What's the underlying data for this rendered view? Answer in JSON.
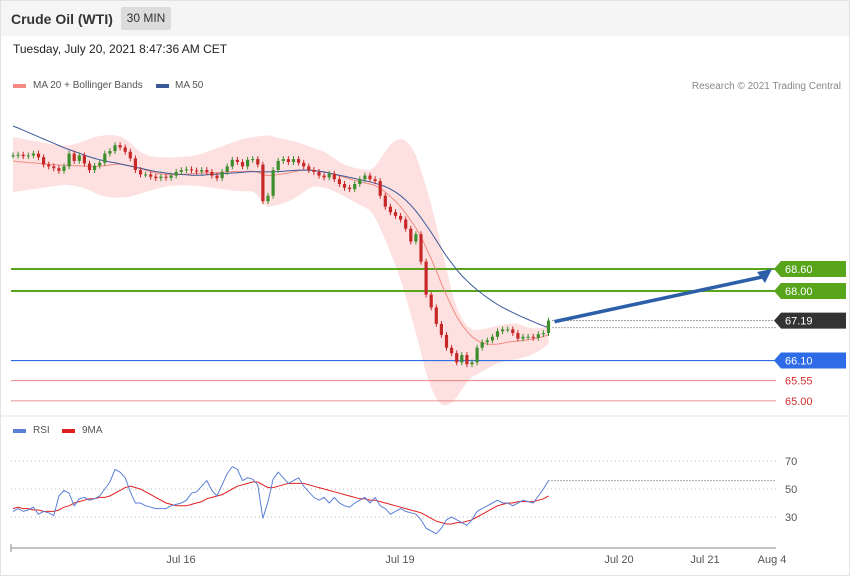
{
  "header": {
    "title": "Crude Oil (WTI)",
    "timeframe": "30 MIN"
  },
  "timestamp": "Tuesday, July 20, 2021 8:47:36 AM CET",
  "legend": {
    "ma20_label": "MA 20 + Bollinger Bands",
    "ma50_label": "MA 50",
    "credit": "Research © 2021 Trading Central"
  },
  "rsi_legend": {
    "rsi_label": "RSI",
    "ma9_label": "9MA"
  },
  "colors": {
    "ma20": "#f28b82",
    "ma50": "#3b5998",
    "bands": "#fddcdc",
    "up_candle": "#3e8e2e",
    "down_candle": "#c62828",
    "resistance": "#58a51c",
    "support": "#2e6be6",
    "support_minor": "#e57373",
    "current": "#333333",
    "arrow": "#2d5fa8",
    "rsi": "#5b7fd6",
    "rsi_ma": "#e02020"
  },
  "chart_data": [
    {
      "type": "line",
      "name": "price",
      "x_tick_labels": [
        "Jul 16",
        "Jul 19",
        "Jul 20",
        "Jul 21",
        "Aug 4"
      ],
      "y_range": [
        64.75,
        73.35
      ],
      "levels": [
        {
          "label": "68.60",
          "value": 68.6,
          "kind": "resistance"
        },
        {
          "label": "68.00",
          "value": 68.0,
          "kind": "resistance"
        },
        {
          "label": "67.19",
          "value": 67.19,
          "kind": "current"
        },
        {
          "label": "66.10",
          "value": 66.1,
          "kind": "support"
        },
        {
          "label": "65.55",
          "value": 65.55,
          "kind": "support_minor"
        },
        {
          "label": "65.00",
          "value": 65.0,
          "kind": "support_minor"
        }
      ],
      "forecast": {
        "from": 67.19,
        "to": 68.6
      },
      "close": [
        71.7,
        71.72,
        71.68,
        71.7,
        71.75,
        71.65,
        71.45,
        71.4,
        71.35,
        71.28,
        71.4,
        71.75,
        71.55,
        71.7,
        71.48,
        71.3,
        71.42,
        71.5,
        71.75,
        71.82,
        71.98,
        71.92,
        71.8,
        71.62,
        71.3,
        71.18,
        71.18,
        71.12,
        71.08,
        71.12,
        71.09,
        71.15,
        71.25,
        71.3,
        71.32,
        71.29,
        71.26,
        71.3,
        71.25,
        71.15,
        71.08,
        71.25,
        71.4,
        71.58,
        71.52,
        71.4,
        71.58,
        71.6,
        71.45,
        70.45,
        70.6,
        71.3,
        71.55,
        71.6,
        71.52,
        71.6,
        71.5,
        71.4,
        71.3,
        71.25,
        71.15,
        71.1,
        71.2,
        71.05,
        70.92,
        70.82,
        70.78,
        70.92,
        71.05,
        71.15,
        71.05,
        71.0,
        70.6,
        70.3,
        70.15,
        70.05,
        69.95,
        69.7,
        69.35,
        69.55,
        68.8,
        67.9,
        67.55,
        67.1,
        66.8,
        66.45,
        66.3,
        66.05,
        66.25,
        66.0,
        66.05,
        66.45,
        66.6,
        66.65,
        66.75,
        66.9,
        66.95,
        66.95,
        66.85,
        66.7,
        66.75,
        66.75,
        66.72,
        66.82,
        66.85,
        67.19
      ],
      "ma20": [
        71.55,
        71.53,
        71.52,
        71.5,
        71.5,
        71.48,
        71.47,
        71.46,
        71.45,
        71.44,
        71.43,
        71.43,
        71.42,
        71.42,
        71.41,
        71.4,
        71.4,
        71.41,
        71.42,
        71.44,
        71.46,
        71.46,
        71.44,
        71.42,
        71.38,
        71.34,
        71.3,
        71.26,
        71.22,
        71.2,
        71.18,
        71.17,
        71.17,
        71.18,
        71.19,
        71.2,
        71.21,
        71.22,
        71.23,
        71.23,
        71.23,
        71.24,
        71.25,
        71.26,
        71.26,
        71.26,
        71.27,
        71.27,
        71.24,
        71.18,
        71.15,
        71.16,
        71.18,
        71.2,
        71.22,
        71.25,
        71.28,
        71.3,
        71.3,
        71.29,
        71.27,
        71.25,
        71.22,
        71.18,
        71.14,
        71.1,
        71.06,
        71.02,
        70.98,
        70.95,
        70.92,
        70.88,
        70.8,
        70.7,
        70.58,
        70.45,
        70.3,
        70.12,
        69.92,
        69.72,
        69.48,
        69.18,
        68.88,
        68.55,
        68.2,
        67.88,
        67.58,
        67.3,
        67.08,
        66.9,
        66.75,
        66.65,
        66.58,
        66.55,
        66.54,
        66.55,
        66.57,
        66.6,
        66.62,
        66.63,
        66.65,
        66.67,
        66.69,
        66.72,
        66.76,
        66.8
      ],
      "ma50": [
        72.5,
        72.45,
        72.39,
        72.33,
        72.27,
        72.21,
        72.15,
        72.09,
        72.03,
        71.97,
        71.91,
        71.86,
        71.81,
        71.76,
        71.71,
        71.66,
        71.62,
        71.58,
        71.55,
        71.52,
        71.5,
        71.47,
        71.44,
        71.41,
        71.38,
        71.35,
        71.32,
        71.29,
        71.26,
        71.24,
        71.22,
        71.2,
        71.19,
        71.18,
        71.17,
        71.16,
        71.16,
        71.16,
        71.17,
        71.18,
        71.19,
        71.2,
        71.21,
        71.22,
        71.23,
        71.24,
        71.25,
        71.26,
        71.26,
        71.25,
        71.25,
        71.25,
        71.26,
        71.27,
        71.28,
        71.29,
        71.3,
        71.3,
        71.3,
        71.29,
        71.27,
        71.25,
        71.22,
        71.19,
        71.16,
        71.13,
        71.1,
        71.07,
        71.04,
        71.01,
        70.98,
        70.94,
        70.9,
        70.85,
        70.78,
        70.7,
        70.6,
        70.48,
        70.34,
        70.18,
        70.0,
        69.8,
        69.6,
        69.38,
        69.16,
        68.95,
        68.76,
        68.58,
        68.42,
        68.28,
        68.15,
        68.03,
        67.92,
        67.82,
        67.72,
        67.63,
        67.55,
        67.48,
        67.41,
        67.34,
        67.28,
        67.22,
        67.16,
        67.1,
        67.05,
        67.0
      ],
      "bb_upper": [
        72.2,
        72.18,
        72.15,
        72.12,
        72.1,
        72.08,
        72.05,
        72.02,
        72.0,
        71.98,
        71.97,
        71.98,
        72.0,
        72.05,
        72.1,
        72.15,
        72.2,
        72.23,
        72.25,
        72.26,
        72.25,
        72.22,
        72.15,
        72.05,
        71.9,
        71.8,
        71.72,
        71.68,
        71.66,
        71.65,
        71.64,
        71.64,
        71.65,
        71.66,
        71.67,
        71.68,
        71.7,
        71.75,
        71.8,
        71.85,
        71.9,
        71.95,
        72.0,
        72.05,
        72.1,
        72.15,
        72.18,
        72.2,
        72.22,
        72.24,
        72.25,
        72.22,
        72.18,
        72.15,
        72.12,
        72.1,
        72.05,
        72.0,
        71.95,
        71.9,
        71.85,
        71.8,
        71.72,
        71.62,
        71.52,
        71.45,
        71.4,
        71.36,
        71.33,
        71.31,
        71.3,
        71.4,
        71.6,
        71.8,
        72.0,
        72.1,
        72.15,
        72.1,
        71.95,
        71.7,
        71.3,
        70.85,
        70.35,
        69.8,
        69.2,
        68.6,
        68.0,
        67.55,
        67.25,
        67.05,
        66.95,
        66.93,
        66.95,
        66.98,
        67.02,
        67.05,
        67.08,
        67.1,
        67.12,
        67.1,
        67.05,
        67.0,
        66.98,
        66.98,
        67.0,
        67.1
      ],
      "bb_lower": [
        70.7,
        70.72,
        70.74,
        70.76,
        70.78,
        70.8,
        70.82,
        70.84,
        70.86,
        70.88,
        70.9,
        70.89,
        70.87,
        70.84,
        70.8,
        70.75,
        70.68,
        70.62,
        70.58,
        70.56,
        70.55,
        70.55,
        70.56,
        70.58,
        70.62,
        70.66,
        70.7,
        70.74,
        70.78,
        70.82,
        70.85,
        70.87,
        70.88,
        70.89,
        70.89,
        70.88,
        70.87,
        70.86,
        70.84,
        70.82,
        70.8,
        70.78,
        70.76,
        70.74,
        70.73,
        70.72,
        70.72,
        70.72,
        70.6,
        70.4,
        70.3,
        70.32,
        70.35,
        70.4,
        70.45,
        70.52,
        70.6,
        70.7,
        70.8,
        70.85,
        70.85,
        70.82,
        70.78,
        70.72,
        70.65,
        70.58,
        70.5,
        70.42,
        70.35,
        70.28,
        70.2,
        70.0,
        69.7,
        69.4,
        69.05,
        68.7,
        68.3,
        67.85,
        67.35,
        66.85,
        66.3,
        65.75,
        65.35,
        65.05,
        64.9,
        64.88,
        64.95,
        65.1,
        65.3,
        65.5,
        65.65,
        65.72,
        65.8,
        65.88,
        65.95,
        66.02,
        66.07,
        66.1,
        66.12,
        66.14,
        66.18,
        66.22,
        66.28,
        66.35,
        66.45,
        66.55
      ],
      "candle_colors": "mixed"
    },
    {
      "type": "line",
      "name": "rsi",
      "y_tick_labels": [
        "70",
        "50",
        "30"
      ],
      "y_range": [
        10,
        85
      ],
      "rsi": [
        34,
        36,
        34,
        35,
        37,
        32,
        34,
        33,
        31,
        45,
        49,
        47,
        38,
        43,
        44,
        42,
        43,
        45,
        50,
        55,
        64,
        62,
        58,
        48,
        40,
        40,
        38,
        37,
        36,
        36,
        36,
        38,
        39,
        40,
        42,
        47,
        48,
        52,
        56,
        49,
        45,
        53,
        61,
        66,
        64,
        56,
        58,
        57,
        53,
        29,
        41,
        57,
        62,
        58,
        54,
        56,
        58,
        52,
        48,
        44,
        42,
        44,
        40,
        44,
        40,
        38,
        37,
        40,
        42,
        44,
        40,
        44,
        38,
        36,
        32,
        34,
        36,
        34,
        33,
        32,
        28,
        22,
        20,
        18,
        22,
        28,
        30,
        28,
        26,
        24,
        28,
        34,
        36,
        38,
        40,
        42,
        40,
        40,
        38,
        40,
        42,
        41,
        40,
        45,
        50,
        56
      ],
      "ma9": [
        36,
        37,
        36,
        36,
        35,
        35,
        34,
        34,
        34,
        35,
        37,
        38,
        40,
        41,
        42,
        43,
        43,
        44,
        44,
        45,
        47,
        49,
        51,
        52,
        51,
        50,
        48,
        46,
        44,
        42,
        40,
        39,
        38,
        38,
        38,
        39,
        40,
        41,
        43,
        44,
        45,
        46,
        48,
        50,
        52,
        53,
        54,
        55,
        55,
        53,
        51,
        51,
        52,
        53,
        54,
        54,
        54,
        54,
        53,
        52,
        51,
        50,
        49,
        48,
        47,
        46,
        45,
        44,
        43,
        43,
        42,
        42,
        41,
        40,
        39,
        38,
        37,
        36,
        35,
        34,
        33,
        31,
        29,
        27,
        26,
        25,
        25,
        26,
        26,
        27,
        28,
        30,
        32,
        34,
        36,
        38,
        39,
        40,
        40,
        41,
        41,
        41,
        41,
        42,
        43,
        45
      ]
    }
  ],
  "rsi_current": 56
}
